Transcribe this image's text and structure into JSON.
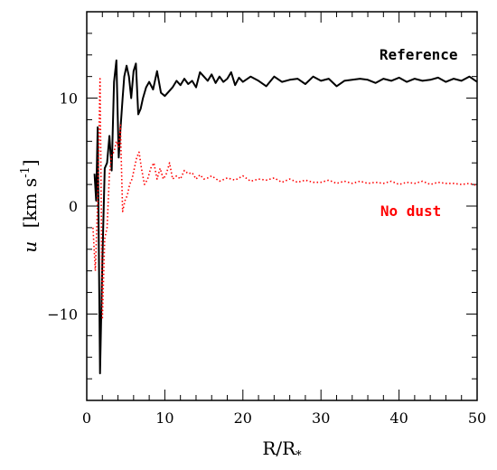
{
  "chart_data": {
    "type": "line",
    "xlabel": "R/R",
    "xlabel_subscript": "*",
    "ylabel": "u",
    "ylabel_units": "[km s",
    "ylabel_units_exp": "-1",
    "ylabel_units_close": "]",
    "xlim": [
      0,
      50
    ],
    "ylim": [
      -18,
      18
    ],
    "x_ticks": [
      0,
      10,
      20,
      30,
      40,
      50
    ],
    "y_ticks": [
      -10,
      0,
      10
    ],
    "grid": false,
    "series": [
      {
        "name": "Reference",
        "color": "#000000",
        "style": "solid",
        "x": [
          1.0,
          1.2,
          1.4,
          1.7,
          2.0,
          2.3,
          2.6,
          2.9,
          3.2,
          3.5,
          3.8,
          4.1,
          4.3,
          4.6,
          4.8,
          5.1,
          5.4,
          5.7,
          6.0,
          6.3,
          6.6,
          6.9,
          7.2,
          7.6,
          8.0,
          8.5,
          9.0,
          9.5,
          10.0,
          10.5,
          11.0,
          11.5,
          12.0,
          12.5,
          13.0,
          13.5,
          14.0,
          14.5,
          15.0,
          15.5,
          16.0,
          16.5,
          17.0,
          17.5,
          18.0,
          18.5,
          19.0,
          19.5,
          20.0,
          21.0,
          22.0,
          23.0,
          24.0,
          25.0,
          26.0,
          27.0,
          28.0,
          29.0,
          30.0,
          31.0,
          32.0,
          33.0,
          34.0,
          35.0,
          36.0,
          37.0,
          38.0,
          39.0,
          40.0,
          41.0,
          42.0,
          43.0,
          44.0,
          45.0,
          46.0,
          47.0,
          48.0,
          49.0,
          50.0
        ],
        "y": [
          3.0,
          0.5,
          7.3,
          -15.5,
          -5.0,
          3.5,
          4.0,
          6.5,
          3.3,
          11.5,
          13.5,
          4.5,
          7.0,
          10.0,
          12.0,
          13.0,
          12.0,
          10.0,
          12.5,
          13.2,
          8.5,
          9.0,
          10.0,
          11.0,
          11.5,
          10.8,
          12.5,
          10.5,
          10.2,
          10.6,
          11.0,
          11.6,
          11.2,
          11.8,
          11.3,
          11.6,
          11.0,
          12.4,
          12.0,
          11.6,
          12.2,
          11.4,
          12.0,
          11.5,
          11.8,
          12.4,
          11.2,
          11.9,
          11.5,
          12.0,
          11.6,
          11.1,
          12.0,
          11.5,
          11.7,
          11.8,
          11.3,
          12.0,
          11.6,
          11.8,
          11.1,
          11.6,
          11.7,
          11.8,
          11.7,
          11.4,
          11.8,
          11.6,
          11.9,
          11.5,
          11.8,
          11.6,
          11.7,
          11.9,
          11.5,
          11.8,
          11.6,
          12.0,
          11.5
        ]
      },
      {
        "name": "No dust",
        "color": "#ff0000",
        "style": "dotted",
        "x": [
          0.8,
          1.1,
          1.4,
          1.7,
          2.0,
          2.3,
          2.6,
          2.9,
          3.2,
          3.5,
          3.8,
          4.1,
          4.3,
          4.6,
          4.9,
          5.2,
          5.5,
          5.8,
          6.1,
          6.4,
          6.7,
          7.0,
          7.4,
          7.8,
          8.2,
          8.6,
          9.0,
          9.4,
          9.8,
          10.2,
          10.6,
          11.0,
          11.5,
          12.0,
          12.5,
          13.0,
          13.5,
          14.0,
          14.5,
          15.0,
          15.5,
          16.0,
          17.0,
          18.0,
          19.0,
          20.0,
          21.0,
          22.0,
          23.0,
          24.0,
          25.0,
          26.0,
          27.0,
          28.0,
          29.0,
          30.0,
          31.0,
          32.0,
          33.0,
          34.0,
          35.0,
          36.0,
          37.0,
          38.0,
          39.0,
          40.0,
          41.0,
          42.0,
          43.0,
          44.0,
          45.0,
          46.0,
          47.0,
          48.0,
          49.0,
          50.0
        ],
        "y": [
          -2.0,
          -6.0,
          0.5,
          11.8,
          -10.5,
          -3.0,
          -2.0,
          3.0,
          4.8,
          5.0,
          6.0,
          5.5,
          7.5,
          -0.5,
          0.5,
          1.0,
          2.0,
          2.5,
          3.5,
          4.5,
          5.0,
          3.5,
          2.0,
          2.5,
          3.5,
          4.0,
          2.5,
          3.5,
          2.5,
          3.0,
          4.0,
          2.5,
          2.8,
          2.5,
          3.3,
          3.0,
          3.1,
          2.5,
          2.9,
          2.5,
          2.6,
          2.8,
          2.3,
          2.6,
          2.4,
          2.8,
          2.3,
          2.5,
          2.4,
          2.6,
          2.2,
          2.5,
          2.2,
          2.4,
          2.2,
          2.2,
          2.4,
          2.1,
          2.3,
          2.1,
          2.3,
          2.1,
          2.2,
          2.1,
          2.3,
          2.0,
          2.2,
          2.1,
          2.3,
          2.0,
          2.2,
          2.1,
          2.1,
          2.0,
          2.1,
          1.9
        ]
      }
    ],
    "annotations": [
      {
        "text": "Reference",
        "x": 42.5,
        "y": 14.0,
        "color": "#000000"
      },
      {
        "text": "No dust",
        "x": 41.5,
        "y": -0.5,
        "color": "#ff0000"
      }
    ]
  }
}
